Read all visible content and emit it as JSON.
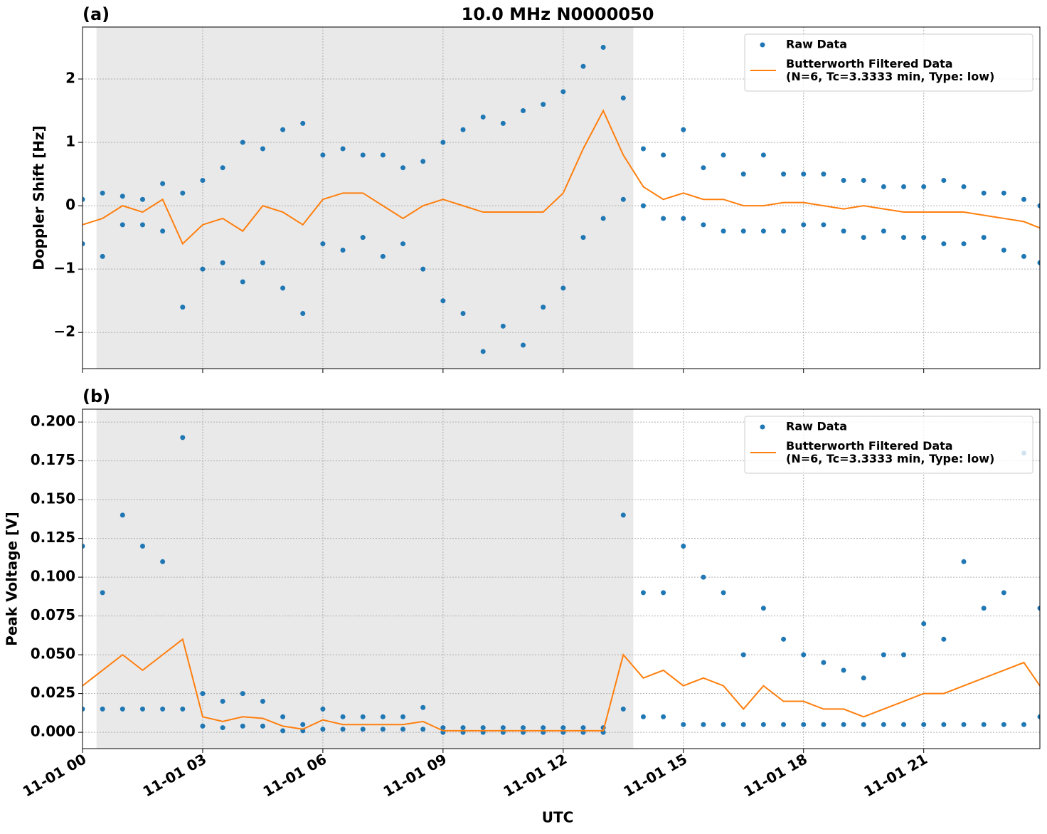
{
  "chart_data": [
    {
      "type": "scatter-line",
      "title": "10.0 MHz N0000050",
      "panel_label": "(a)",
      "y_label": "Doppler Shift [Hz]",
      "xlim": [
        0,
        23.9
      ],
      "ylim": [
        -2.57,
        2.82
      ],
      "xticks": [
        0,
        3,
        6,
        9,
        12,
        15,
        18,
        21
      ],
      "yticks": [
        {
          "value": -2,
          "label": "−2"
        },
        {
          "value": -1,
          "label": "−1"
        },
        0,
        1,
        2
      ],
      "grid": true,
      "legend": "upper right",
      "shaded_span": [
        0.35,
        13.75
      ],
      "x": [
        0,
        0.5,
        1,
        1.5,
        2,
        2.5,
        3,
        3.5,
        4,
        4.5,
        5,
        5.5,
        6,
        6.5,
        7,
        7.5,
        8,
        8.5,
        9,
        9.5,
        10,
        10.5,
        11,
        11.5,
        12,
        12.5,
        13,
        13.5,
        14,
        14.5,
        15,
        15.5,
        16,
        16.5,
        17,
        17.5,
        18,
        18.5,
        19,
        19.5,
        20,
        20.5,
        21,
        21.5,
        22,
        22.5,
        23,
        23.5,
        23.9
      ],
      "series": [
        {
          "name": "Raw Data",
          "color": "#1f77b4",
          "kind": "scatter",
          "x": [
            0,
            0,
            0.5,
            0.5,
            1,
            1,
            1.5,
            1.5,
            2,
            2,
            2.5,
            2.5,
            3,
            3,
            3.5,
            3.5,
            4,
            4,
            4.5,
            4.5,
            5,
            5,
            5.5,
            5.5,
            6,
            6,
            6.5,
            6.5,
            7,
            7,
            7.5,
            7.5,
            8,
            8,
            8.5,
            8.5,
            9,
            9,
            9.5,
            9.5,
            10,
            10,
            10.5,
            10.5,
            11,
            11,
            11.5,
            11.5,
            12,
            12,
            12.5,
            12.5,
            13,
            13,
            13.5,
            13.5,
            14,
            14,
            14.5,
            14.5,
            15,
            15,
            15.5,
            15.5,
            16,
            16,
            16.5,
            16.5,
            17,
            17,
            17.5,
            17.5,
            18,
            18,
            18.5,
            18.5,
            19,
            19,
            19.5,
            19.5,
            20,
            20,
            20.5,
            20.5,
            21,
            21,
            21.5,
            21.5,
            22,
            22,
            22.5,
            22.5,
            23,
            23,
            23.5,
            23.5,
            23.9,
            23.9
          ],
          "values": [
            -0.6,
            0.1,
            -0.8,
            0.2,
            -0.3,
            0.15,
            -0.3,
            0.1,
            -0.4,
            0.35,
            -1.6,
            0.2,
            -1.0,
            0.4,
            -0.9,
            0.6,
            -1.2,
            1.0,
            -0.9,
            0.9,
            -1.3,
            1.2,
            -1.7,
            1.3,
            -0.6,
            0.8,
            -0.7,
            0.9,
            -0.5,
            0.8,
            -0.8,
            0.8,
            -0.6,
            0.6,
            -1.0,
            0.7,
            -1.5,
            1.0,
            -1.7,
            1.2,
            -2.3,
            1.4,
            -1.9,
            1.3,
            -2.2,
            1.5,
            -1.6,
            1.6,
            -1.3,
            1.8,
            -0.5,
            2.2,
            -0.2,
            2.5,
            0.1,
            1.7,
            0.0,
            0.9,
            -0.2,
            0.8,
            -0.2,
            1.2,
            -0.3,
            0.6,
            -0.4,
            0.8,
            -0.4,
            0.5,
            -0.4,
            0.8,
            -0.4,
            0.5,
            -0.3,
            0.5,
            -0.3,
            0.5,
            -0.4,
            0.4,
            -0.5,
            0.4,
            -0.4,
            0.3,
            -0.5,
            0.3,
            -0.5,
            0.3,
            -0.6,
            0.4,
            -0.6,
            0.3,
            -0.5,
            0.2,
            -0.7,
            0.2,
            -0.8,
            0.1,
            -0.9,
            0.0
          ]
        },
        {
          "name": "Butterworth Filtered Data\n(N=6, Tc=3.3333 min, Type: low)",
          "color": "#ff7f0e",
          "kind": "line",
          "values": [
            -0.3,
            -0.2,
            0.0,
            -0.1,
            0.1,
            -0.6,
            -0.3,
            -0.2,
            -0.4,
            0.0,
            -0.1,
            -0.3,
            0.1,
            0.2,
            0.2,
            0.0,
            -0.2,
            0.0,
            0.1,
            0.0,
            -0.1,
            -0.1,
            -0.1,
            -0.1,
            0.2,
            0.9,
            1.5,
            0.8,
            0.3,
            0.1,
            0.2,
            0.1,
            0.1,
            0.0,
            0.0,
            0.05,
            0.05,
            0.0,
            -0.05,
            0.0,
            -0.05,
            -0.1,
            -0.1,
            -0.1,
            -0.1,
            -0.15,
            -0.2,
            -0.25,
            -0.35
          ]
        }
      ]
    },
    {
      "type": "scatter-line",
      "panel_label": "(b)",
      "y_label": "Peak Voltage [V]",
      "x_label": "UTC",
      "xlim": [
        0,
        23.9
      ],
      "ylim": [
        -0.0105,
        0.2083
      ],
      "xticks": [
        {
          "value": 0,
          "label": "11-01 00"
        },
        {
          "value": 3,
          "label": "11-01 03"
        },
        {
          "value": 6,
          "label": "11-01 06"
        },
        {
          "value": 9,
          "label": "11-01 09"
        },
        {
          "value": 12,
          "label": "11-01 12"
        },
        {
          "value": 15,
          "label": "11-01 15"
        },
        {
          "value": 18,
          "label": "11-01 18"
        },
        {
          "value": 21,
          "label": "11-01 21"
        }
      ],
      "yticks": [
        {
          "value": 0,
          "label": "0.000"
        },
        {
          "value": 0.025,
          "label": "0.025"
        },
        {
          "value": 0.05,
          "label": "0.050"
        },
        {
          "value": 0.075,
          "label": "0.075"
        },
        {
          "value": 0.1,
          "label": "0.100"
        },
        {
          "value": 0.125,
          "label": "0.125"
        },
        {
          "value": 0.15,
          "label": "0.150"
        },
        {
          "value": 0.175,
          "label": "0.175"
        },
        {
          "value": 0.2,
          "label": "0.200"
        }
      ],
      "grid": true,
      "legend": "upper right",
      "shaded_span": [
        0.35,
        13.75
      ],
      "x": [
        0,
        0.5,
        1,
        1.5,
        2,
        2.5,
        3,
        3.5,
        4,
        4.5,
        5,
        5.5,
        6,
        6.5,
        7,
        7.5,
        8,
        8.5,
        9,
        9.5,
        10,
        10.5,
        11,
        11.5,
        12,
        12.5,
        13,
        13.5,
        14,
        14.5,
        15,
        15.5,
        16,
        16.5,
        17,
        17.5,
        18,
        18.5,
        19,
        19.5,
        20,
        20.5,
        21,
        21.5,
        22,
        22.5,
        23,
        23.5,
        23.9
      ],
      "series": [
        {
          "name": "Raw Data",
          "color": "#1f77b4",
          "kind": "scatter",
          "x": [
            0,
            0,
            0.5,
            0.5,
            1,
            1,
            1.5,
            1.5,
            2,
            2,
            2.5,
            2.5,
            3,
            3,
            3.5,
            3.5,
            4,
            4,
            4.5,
            4.5,
            5,
            5,
            5.5,
            5.5,
            6,
            6,
            6.5,
            6.5,
            7,
            7,
            7.5,
            7.5,
            8,
            8,
            8.5,
            8.5,
            9,
            9,
            9.5,
            9.5,
            10,
            10,
            10.5,
            10.5,
            11,
            11,
            11.5,
            11.5,
            12,
            12,
            12.5,
            12.5,
            13,
            13,
            13.5,
            13.5,
            14,
            14,
            14.5,
            14.5,
            15,
            15,
            15.5,
            15.5,
            16,
            16,
            16.5,
            16.5,
            17,
            17,
            17.5,
            17.5,
            18,
            18,
            18.5,
            18.5,
            19,
            19,
            19.5,
            19.5,
            20,
            20,
            20.5,
            20.5,
            21,
            21,
            21.5,
            21.5,
            22,
            22,
            22.5,
            22.5,
            23,
            23,
            23.5,
            23.5,
            23.9,
            23.9
          ],
          "values": [
            0.015,
            0.12,
            0.015,
            0.09,
            0.015,
            0.14,
            0.015,
            0.12,
            0.015,
            0.11,
            0.015,
            0.19,
            0.004,
            0.025,
            0.003,
            0.02,
            0.004,
            0.025,
            0.004,
            0.02,
            0.001,
            0.01,
            0.001,
            0.005,
            0.002,
            0.015,
            0.002,
            0.01,
            0.002,
            0.01,
            0.002,
            0.01,
            0.002,
            0.01,
            0.002,
            0.016,
            0,
            0.003,
            0,
            0.003,
            0,
            0.003,
            0,
            0.003,
            0,
            0.003,
            0,
            0.003,
            0,
            0.003,
            0,
            0.003,
            0,
            0.003,
            0.015,
            0.14,
            0.01,
            0.09,
            0.01,
            0.09,
            0.005,
            0.12,
            0.005,
            0.1,
            0.005,
            0.09,
            0.005,
            0.05,
            0.005,
            0.08,
            0.005,
            0.06,
            0.005,
            0.05,
            0.005,
            0.045,
            0.005,
            0.04,
            0.005,
            0.035,
            0.005,
            0.05,
            0.005,
            0.05,
            0.005,
            0.07,
            0.005,
            0.06,
            0.005,
            0.11,
            0.005,
            0.08,
            0.005,
            0.09,
            0.005,
            0.18,
            0.01,
            0.08
          ]
        },
        {
          "name": "Butterworth Filtered Data\n(N=6, Tc=3.3333 min, Type: low)",
          "color": "#ff7f0e",
          "kind": "line",
          "values": [
            0.03,
            0.04,
            0.05,
            0.04,
            0.05,
            0.06,
            0.01,
            0.007,
            0.01,
            0.009,
            0.004,
            0.002,
            0.008,
            0.005,
            0.005,
            0.005,
            0.005,
            0.007,
            0.001,
            0.001,
            0.001,
            0.001,
            0.001,
            0.001,
            0.001,
            0.001,
            0.001,
            0.05,
            0.035,
            0.04,
            0.03,
            0.035,
            0.03,
            0.015,
            0.03,
            0.02,
            0.02,
            0.015,
            0.015,
            0.01,
            0.015,
            0.02,
            0.025,
            0.025,
            0.03,
            0.035,
            0.04,
            0.045,
            0.03
          ]
        }
      ]
    }
  ]
}
